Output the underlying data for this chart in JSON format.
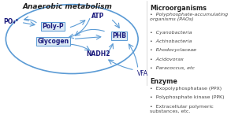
{
  "title": "Anaerobic metabolism",
  "bg_color": "#ffffff",
  "ellipse_color": "#5b9bd5",
  "arrow_color": "#5b9bd5",
  "text_color": "#333333",
  "box_bg": "#dce9f5",
  "right_panel": {
    "microorganisms_title": "Microorganisms",
    "microorganisms": [
      "Polyphosphate-accumulating\norganisms (PAOs)",
      "Cyanobacteria",
      "Actinobacteria",
      "Rhodocyclaceae",
      "Acidovorax",
      "Paracoccus, etc"
    ],
    "enzyme_title": "Enzyme",
    "enzymes": [
      "Exopolyphosphatase (PPX)",
      "Polyphosphate kinase (PPK)",
      "Extracellular polymeric\nsubstances, etc."
    ]
  }
}
